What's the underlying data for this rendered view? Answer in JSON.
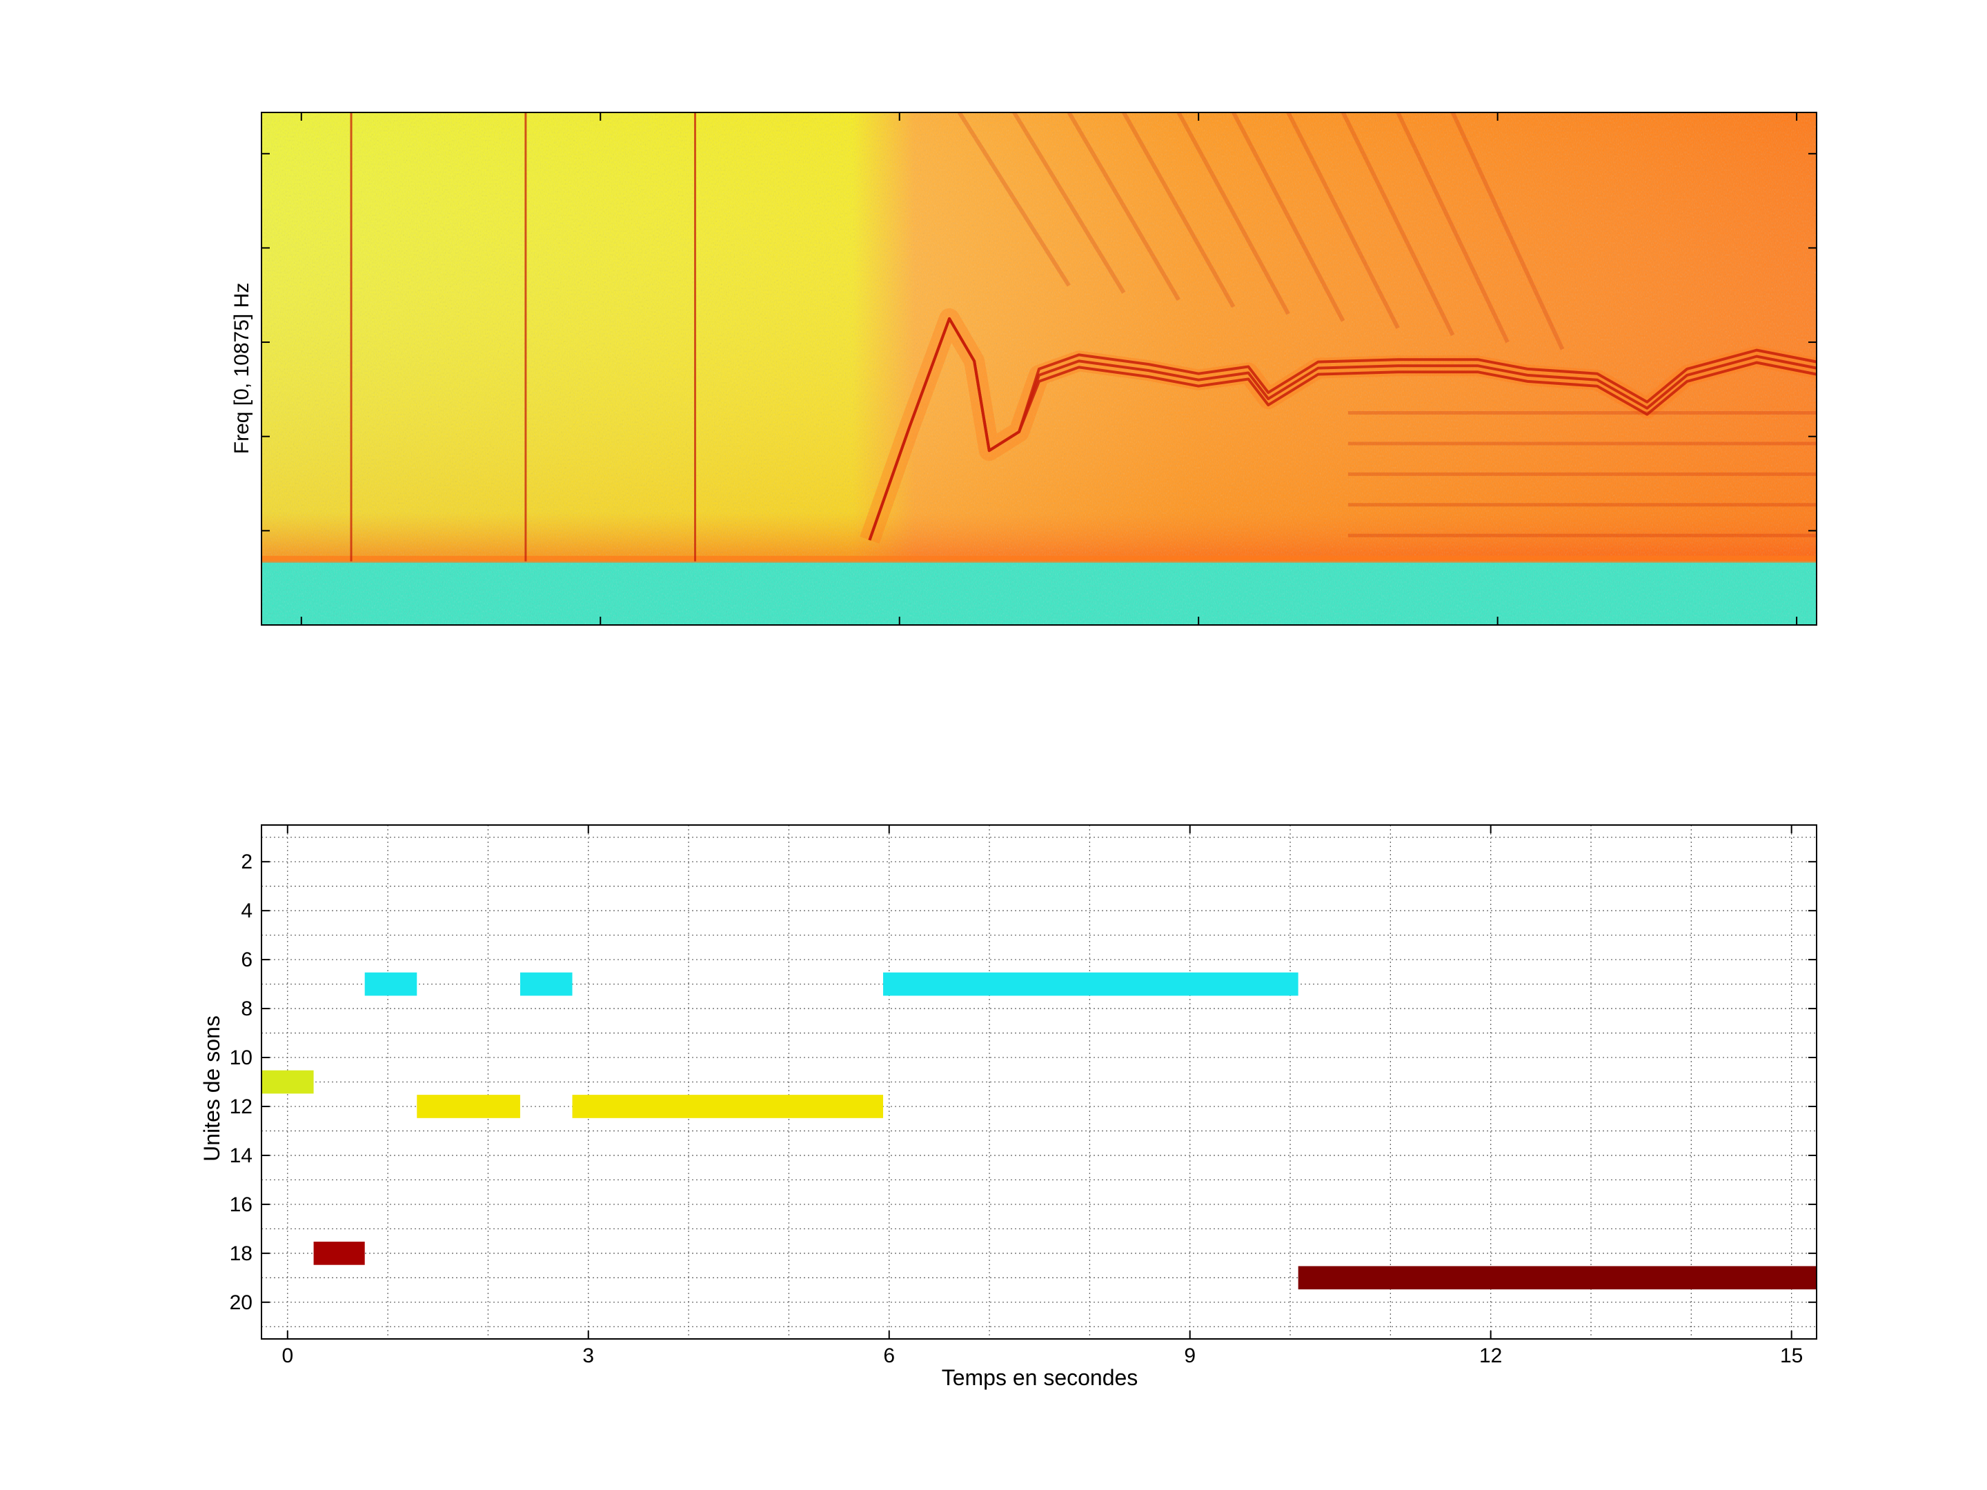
{
  "chart_data": [
    {
      "type": "heatmap",
      "title": "",
      "xlabel": "",
      "ylabel": "Freq [0, 10875] Hz",
      "xlim": [
        -0.4,
        15.2
      ],
      "ylim": [
        0,
        10875
      ],
      "colormap": "jet",
      "colors": {
        "noise_floor": "#3ee6c4",
        "background": "#f6ec2a",
        "energy": "#ff7a1a",
        "peak": "#c81e0a"
      },
      "features": [
        {
          "type": "noise-band",
          "t": [
            -0.4,
            15.2
          ],
          "f": [
            0,
            1350
          ]
        },
        {
          "type": "click",
          "t": 0.5
        },
        {
          "type": "click",
          "t": 2.25
        },
        {
          "type": "click",
          "t": 3.95
        },
        {
          "type": "whistle",
          "points": [
            [
              5.7,
              1800
            ],
            [
              6.1,
              4200
            ],
            [
              6.5,
              6500
            ],
            [
              6.75,
              5600
            ],
            [
              6.9,
              3700
            ],
            [
              7.2,
              4100
            ],
            [
              7.4,
              5300
            ],
            [
              7.8,
              5600
            ],
            [
              8.5,
              5400
            ],
            [
              9.0,
              5200
            ],
            [
              9.5,
              5350
            ],
            [
              9.7,
              4800
            ],
            [
              10.2,
              5450
            ],
            [
              11.0,
              5500
            ],
            [
              11.8,
              5500
            ],
            [
              12.3,
              5300
            ],
            [
              13.0,
              5200
            ],
            [
              13.5,
              4600
            ],
            [
              13.9,
              5300
            ],
            [
              14.6,
              5700
            ],
            [
              15.2,
              5450
            ]
          ]
        }
      ]
    },
    {
      "type": "bar",
      "subtype": "timeline",
      "title": "",
      "xlabel": "Temps en secondes",
      "ylabel": "Unites de sons",
      "xlim": [
        -0.26,
        15.25
      ],
      "ylim": [
        21.5,
        0.5
      ],
      "y_reversed": true,
      "xticks": [
        "0",
        "3",
        "6",
        "9",
        "12",
        "15"
      ],
      "xtick_values": [
        0,
        3,
        6,
        9,
        12,
        15
      ],
      "yticks": [
        "2",
        "4",
        "6",
        "8",
        "10",
        "12",
        "14",
        "16",
        "18",
        "20"
      ],
      "ytick_values": [
        2,
        4,
        6,
        8,
        10,
        12,
        14,
        16,
        18,
        20
      ],
      "grid": true,
      "segments": [
        {
          "unit": 11,
          "start": -0.26,
          "end": 0.26,
          "color": "#d6ea1a"
        },
        {
          "unit": 18,
          "start": 0.26,
          "end": 0.77,
          "color": "#a80000"
        },
        {
          "unit": 7,
          "start": 0.77,
          "end": 1.29,
          "color": "#1ae6ee"
        },
        {
          "unit": 12,
          "start": 1.29,
          "end": 2.32,
          "color": "#f2e600"
        },
        {
          "unit": 7,
          "start": 2.32,
          "end": 2.84,
          "color": "#1ae6ee"
        },
        {
          "unit": 12,
          "start": 2.84,
          "end": 5.94,
          "color": "#f2e600"
        },
        {
          "unit": 7,
          "start": 5.94,
          "end": 10.08,
          "color": "#1ae6ee"
        },
        {
          "unit": 19,
          "start": 10.08,
          "end": 15.25,
          "color": "#800000"
        }
      ]
    }
  ]
}
